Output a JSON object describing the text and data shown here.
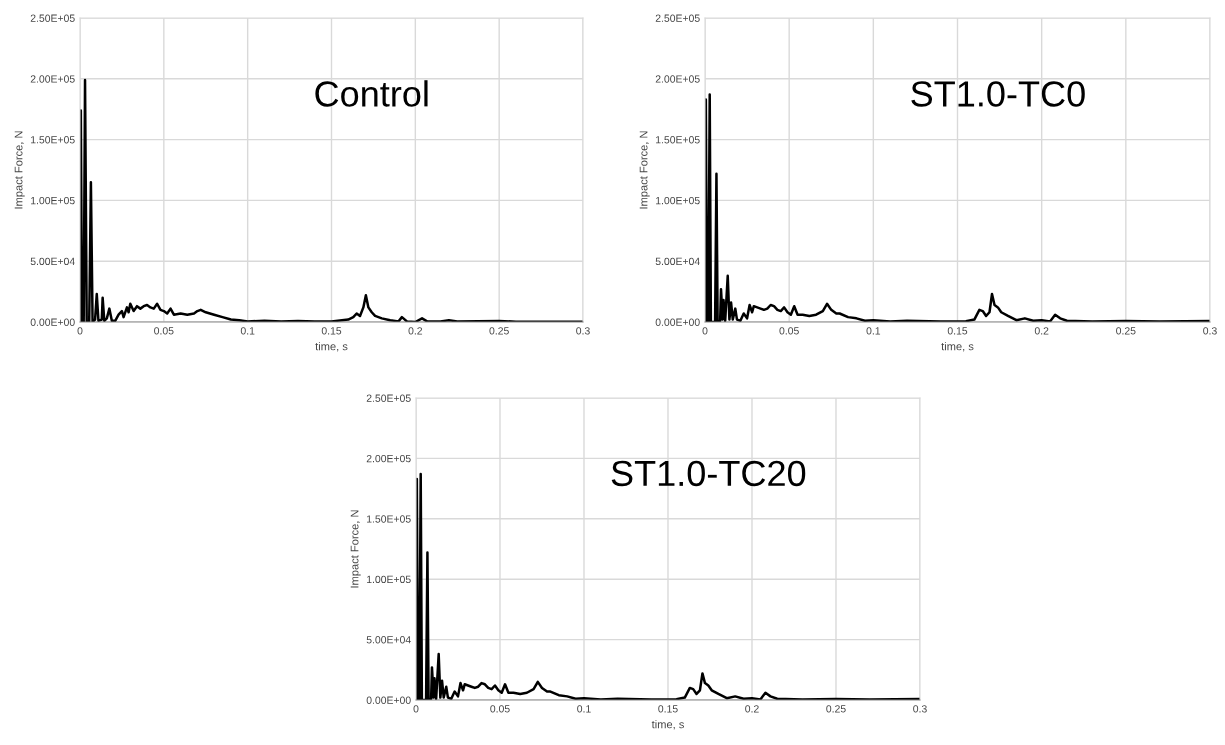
{
  "chart_data": [
    {
      "type": "line",
      "annotations": [
        "Control"
      ],
      "xlabel": "time, s",
      "ylabel": "Impact Force, N",
      "grid": true,
      "xlim": [
        0,
        0.3
      ],
      "xticks": [
        0,
        0.05,
        0.1,
        0.15,
        0.2,
        0.25,
        0.3
      ],
      "ylim": [
        0,
        250000
      ],
      "yticks": [
        {
          "value": 0,
          "label": "0.00E+00"
        },
        {
          "value": 50000,
          "label": "5.00E+04"
        },
        {
          "value": 100000,
          "label": "1.00E+05"
        },
        {
          "value": 150000,
          "label": "1.50E+05"
        },
        {
          "value": 200000,
          "label": "2.00E+05"
        },
        {
          "value": 250000,
          "label": "2.50E+05"
        }
      ],
      "series": [
        {
          "color": "#000000",
          "x": [
            0,
            0.0005,
            0.0012,
            0.0022,
            0.003,
            0.004,
            0.0055,
            0.0065,
            0.0075,
            0.009,
            0.01,
            0.011,
            0.013,
            0.0135,
            0.0145,
            0.016,
            0.0175,
            0.019,
            0.021,
            0.023,
            0.025,
            0.026,
            0.028,
            0.029,
            0.03,
            0.032,
            0.034,
            0.036,
            0.038,
            0.04,
            0.042,
            0.044,
            0.046,
            0.048,
            0.05,
            0.052,
            0.054,
            0.056,
            0.06,
            0.064,
            0.068,
            0.07,
            0.072,
            0.075,
            0.08,
            0.085,
            0.09,
            0.095,
            0.1,
            0.11,
            0.12,
            0.13,
            0.14,
            0.15,
            0.16,
            0.163,
            0.165,
            0.167,
            0.169,
            0.1705,
            0.172,
            0.174,
            0.176,
            0.18,
            0.185,
            0.19,
            0.192,
            0.195,
            0.2,
            0.204,
            0.207,
            0.215,
            0.22,
            0.225,
            0.25,
            0.26,
            0.3
          ],
          "values": [
            0,
            174000,
            0,
            0,
            199000,
            0,
            0,
            115000,
            0,
            2000,
            23000,
            1000,
            2000,
            20000,
            1000,
            3000,
            11000,
            1000,
            1000,
            6000,
            9000,
            4000,
            12000,
            8000,
            15000,
            9000,
            13000,
            11000,
            13000,
            14000,
            12000,
            11000,
            15000,
            10000,
            9000,
            7000,
            11000,
            6000,
            7000,
            6000,
            7000,
            9000,
            10000,
            8000,
            6000,
            4000,
            2000,
            1500,
            500,
            1000,
            500,
            800,
            400,
            500,
            2000,
            4000,
            7000,
            5000,
            12000,
            22000,
            12000,
            8000,
            5000,
            3000,
            1500,
            500,
            4000,
            500,
            0,
            3000,
            500,
            500,
            1500,
            500,
            800,
            300,
            300
          ]
        }
      ]
    },
    {
      "type": "line",
      "annotations": [
        "ST1.0-TC0"
      ],
      "xlabel": "time, s",
      "ylabel": "Impact Force, N",
      "grid": true,
      "xlim": [
        0,
        0.3
      ],
      "xticks": [
        0,
        0.05,
        0.1,
        0.15,
        0.2,
        0.25,
        0.3
      ],
      "ylim": [
        0,
        250000
      ],
      "yticks": [
        {
          "value": 0,
          "label": "0.00E+00"
        },
        {
          "value": 50000,
          "label": "5.00E+04"
        },
        {
          "value": 100000,
          "label": "1.00E+05"
        },
        {
          "value": 150000,
          "label": "1.50E+05"
        },
        {
          "value": 200000,
          "label": "2.00E+05"
        },
        {
          "value": 250000,
          "label": "2.50E+05"
        }
      ],
      "series": [
        {
          "color": "#000000",
          "x": [
            0,
            0.0005,
            0.0012,
            0.002,
            0.0028,
            0.0035,
            0.006,
            0.0068,
            0.0075,
            0.009,
            0.0095,
            0.0105,
            0.011,
            0.012,
            0.0135,
            0.0145,
            0.0155,
            0.0165,
            0.018,
            0.019,
            0.021,
            0.023,
            0.025,
            0.0265,
            0.028,
            0.029,
            0.031,
            0.033,
            0.035,
            0.037,
            0.039,
            0.041,
            0.043,
            0.045,
            0.047,
            0.049,
            0.051,
            0.053,
            0.055,
            0.058,
            0.062,
            0.066,
            0.07,
            0.0725,
            0.075,
            0.078,
            0.08,
            0.085,
            0.09,
            0.095,
            0.1,
            0.11,
            0.12,
            0.14,
            0.155,
            0.16,
            0.163,
            0.165,
            0.167,
            0.169,
            0.1705,
            0.172,
            0.174,
            0.176,
            0.18,
            0.185,
            0.19,
            0.195,
            0.2,
            0.205,
            0.208,
            0.211,
            0.215,
            0.23,
            0.25,
            0.27,
            0.3
          ],
          "values": [
            0,
            183000,
            0,
            0,
            187000,
            0,
            0,
            122000,
            0,
            1000,
            27000,
            2000,
            18000,
            1000,
            38000,
            2000,
            16000,
            2000,
            11000,
            2000,
            1000,
            7000,
            3000,
            14000,
            8000,
            13000,
            12000,
            11000,
            10000,
            11000,
            14000,
            13000,
            10000,
            9000,
            12000,
            8000,
            6000,
            13000,
            6000,
            6000,
            5000,
            6000,
            9000,
            15000,
            10000,
            7000,
            7000,
            4000,
            3000,
            1000,
            1500,
            500,
            1000,
            500,
            700,
            2000,
            10000,
            9000,
            5000,
            8000,
            23000,
            14000,
            12000,
            8000,
            5000,
            1500,
            3000,
            1000,
            1500,
            500,
            6000,
            3000,
            1000,
            500,
            800,
            500,
            800
          ]
        }
      ]
    },
    {
      "type": "line",
      "annotations": [
        "ST1.0-TC20"
      ],
      "xlabel": "time, s",
      "ylabel": "Impact Force, N",
      "grid": true,
      "xlim": [
        0,
        0.3
      ],
      "xticks": [
        0,
        0.05,
        0.1,
        0.15,
        0.2,
        0.25,
        0.3
      ],
      "ylim": [
        0,
        250000
      ],
      "yticks": [
        {
          "value": 0,
          "label": "0.00E+00"
        },
        {
          "value": 50000,
          "label": "5.00E+04"
        },
        {
          "value": 100000,
          "label": "1.00E+05"
        },
        {
          "value": 150000,
          "label": "1.50E+05"
        },
        {
          "value": 200000,
          "label": "2.00E+05"
        },
        {
          "value": 250000,
          "label": "2.50E+05"
        }
      ],
      "series": [
        {
          "color": "#000000",
          "x": [
            0,
            0.0005,
            0.0012,
            0.002,
            0.0028,
            0.0035,
            0.006,
            0.0068,
            0.0075,
            0.009,
            0.0095,
            0.0105,
            0.011,
            0.012,
            0.0135,
            0.0145,
            0.0155,
            0.0165,
            0.018,
            0.019,
            0.021,
            0.023,
            0.025,
            0.0265,
            0.028,
            0.029,
            0.031,
            0.033,
            0.035,
            0.037,
            0.039,
            0.041,
            0.043,
            0.045,
            0.047,
            0.049,
            0.051,
            0.053,
            0.055,
            0.058,
            0.062,
            0.066,
            0.07,
            0.0725,
            0.075,
            0.078,
            0.08,
            0.085,
            0.09,
            0.095,
            0.1,
            0.11,
            0.12,
            0.14,
            0.155,
            0.16,
            0.163,
            0.165,
            0.167,
            0.169,
            0.1705,
            0.172,
            0.174,
            0.176,
            0.18,
            0.185,
            0.19,
            0.195,
            0.2,
            0.205,
            0.208,
            0.211,
            0.215,
            0.23,
            0.25,
            0.27,
            0.3
          ],
          "values": [
            0,
            183000,
            0,
            0,
            187000,
            0,
            0,
            122000,
            0,
            1000,
            27000,
            2000,
            18000,
            1000,
            38000,
            2000,
            16000,
            2000,
            11000,
            2000,
            1000,
            7000,
            3000,
            14000,
            8000,
            13000,
            12000,
            11000,
            10000,
            11000,
            14000,
            13000,
            10000,
            9000,
            12000,
            8000,
            6000,
            13000,
            6000,
            6000,
            5000,
            6000,
            9000,
            15000,
            10000,
            7000,
            7000,
            4000,
            3000,
            1000,
            1500,
            500,
            1000,
            500,
            700,
            2000,
            10000,
            9000,
            5000,
            8000,
            22000,
            14000,
            12000,
            8000,
            5000,
            1500,
            3000,
            1000,
            1500,
            500,
            6000,
            3000,
            1000,
            500,
            800,
            500,
            800
          ]
        }
      ]
    }
  ]
}
